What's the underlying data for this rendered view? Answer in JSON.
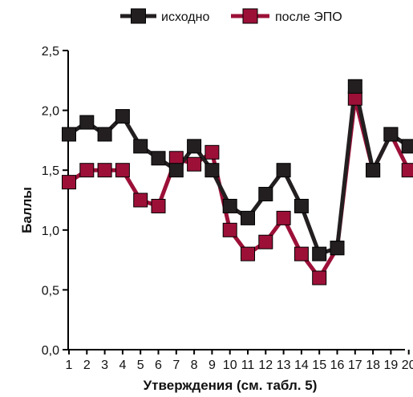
{
  "chart_data": {
    "type": "line",
    "title": "",
    "xlabel": "Утверждения (см. табл. 5)",
    "ylabel": "Баллы",
    "x": [
      1,
      2,
      3,
      4,
      5,
      6,
      7,
      8,
      9,
      10,
      11,
      12,
      13,
      14,
      15,
      16,
      17,
      18,
      19,
      20
    ],
    "x_tick_labels": [
      "1",
      "2",
      "3",
      "4",
      "5",
      "6",
      "7",
      "8",
      "9",
      "10",
      "11",
      "12",
      "13",
      "14",
      "15",
      "16",
      "17",
      "18",
      "19",
      "20"
    ],
    "ylim": [
      0,
      2.5
    ],
    "y_ticks": [
      0,
      0.5,
      1.0,
      1.5,
      2.0,
      2.5
    ],
    "y_tick_labels": [
      "0,0",
      "0,5",
      "1,0",
      "1,5",
      "2,0",
      "2,5"
    ],
    "grid": false,
    "legend_position": "top-center",
    "series": [
      {
        "name": "исходно",
        "color": "#231f20",
        "marker": "square",
        "values": [
          1.8,
          1.9,
          1.8,
          1.95,
          1.7,
          1.6,
          1.5,
          1.7,
          1.5,
          1.2,
          1.1,
          1.3,
          1.5,
          1.2,
          0.8,
          0.85,
          2.2,
          1.5,
          1.8,
          1.7
        ]
      },
      {
        "name": "после ЭПО",
        "color": "#9c1038",
        "marker": "square",
        "values": [
          1.4,
          1.5,
          1.5,
          1.5,
          1.25,
          1.2,
          1.6,
          1.55,
          1.65,
          1.0,
          0.8,
          0.9,
          1.1,
          0.8,
          0.6,
          0.85,
          2.1,
          1.5,
          1.8,
          1.5
        ]
      }
    ]
  }
}
